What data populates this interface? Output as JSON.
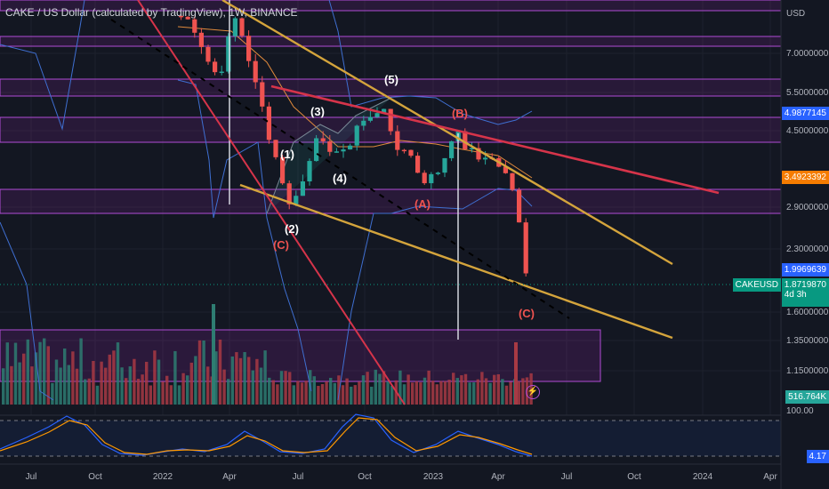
{
  "header": {
    "title": "CAKE / US Dollar (calculated by TradingView), 1W, BINANCE"
  },
  "price_axis": {
    "currency": "USD",
    "ticks": [
      "7.0000000",
      "5.5000000",
      "4.5000000",
      "2.9000000",
      "2.3000000",
      "1.6000000",
      "1.3500000",
      "1.1500000"
    ]
  },
  "price_badges": {
    "upper_band": "4.9877145",
    "resistance": "3.4923392",
    "mid_band": "1.9969639",
    "symbol": "CAKEUSD",
    "last_price": "1.8719870",
    "countdown": "4d 3h",
    "volume": "516.764K",
    "osc_value": "4.17"
  },
  "oscillator_axis": {
    "top": "100.00"
  },
  "time_axis": [
    "Jul",
    "Oct",
    "2022",
    "Apr",
    "Jul",
    "Oct",
    "2023",
    "Apr",
    "Jul",
    "Oct",
    "2024",
    "Apr"
  ],
  "wave_labels": [
    "(1)",
    "(2)",
    "(3)",
    "(4)",
    "(5)",
    "(A)",
    "(B)",
    "(C)",
    "(C)"
  ],
  "colors": {
    "background": "#131722",
    "up_candle": "#26a69a",
    "down_candle": "#ef5350",
    "zone": "#9c27b0",
    "trend_gold": "#d4a43c",
    "trend_red": "#d6344a",
    "band": "#3f6fd1"
  },
  "chart_data": {
    "type": "candlestick",
    "title": "CAKE / US Dollar (calculated by TradingView), 1W, BINANCE",
    "scale": "log",
    "ylabel": "USD",
    "last_price": 1.871987,
    "labels": {
      "upper_band": 4.9877145,
      "resistance": 3.4923392,
      "mid_band": 1.9969639,
      "volume": "516.764K",
      "oscillator": 4.17
    },
    "waves": [
      {
        "label": "(1)",
        "price": 3.7
      },
      {
        "label": "(2)",
        "price": 2.6
      },
      {
        "label": "(3)",
        "price": 5.0
      },
      {
        "label": "(4)",
        "price": 3.3
      },
      {
        "label": "(5)",
        "price": 5.8
      },
      {
        "label": "(A)",
        "price": 3.0
      },
      {
        "label": "(B)",
        "price": 4.7
      },
      {
        "label": "(C)",
        "price": 2.4
      },
      {
        "label": "(C)",
        "price": 1.6
      }
    ]
  }
}
